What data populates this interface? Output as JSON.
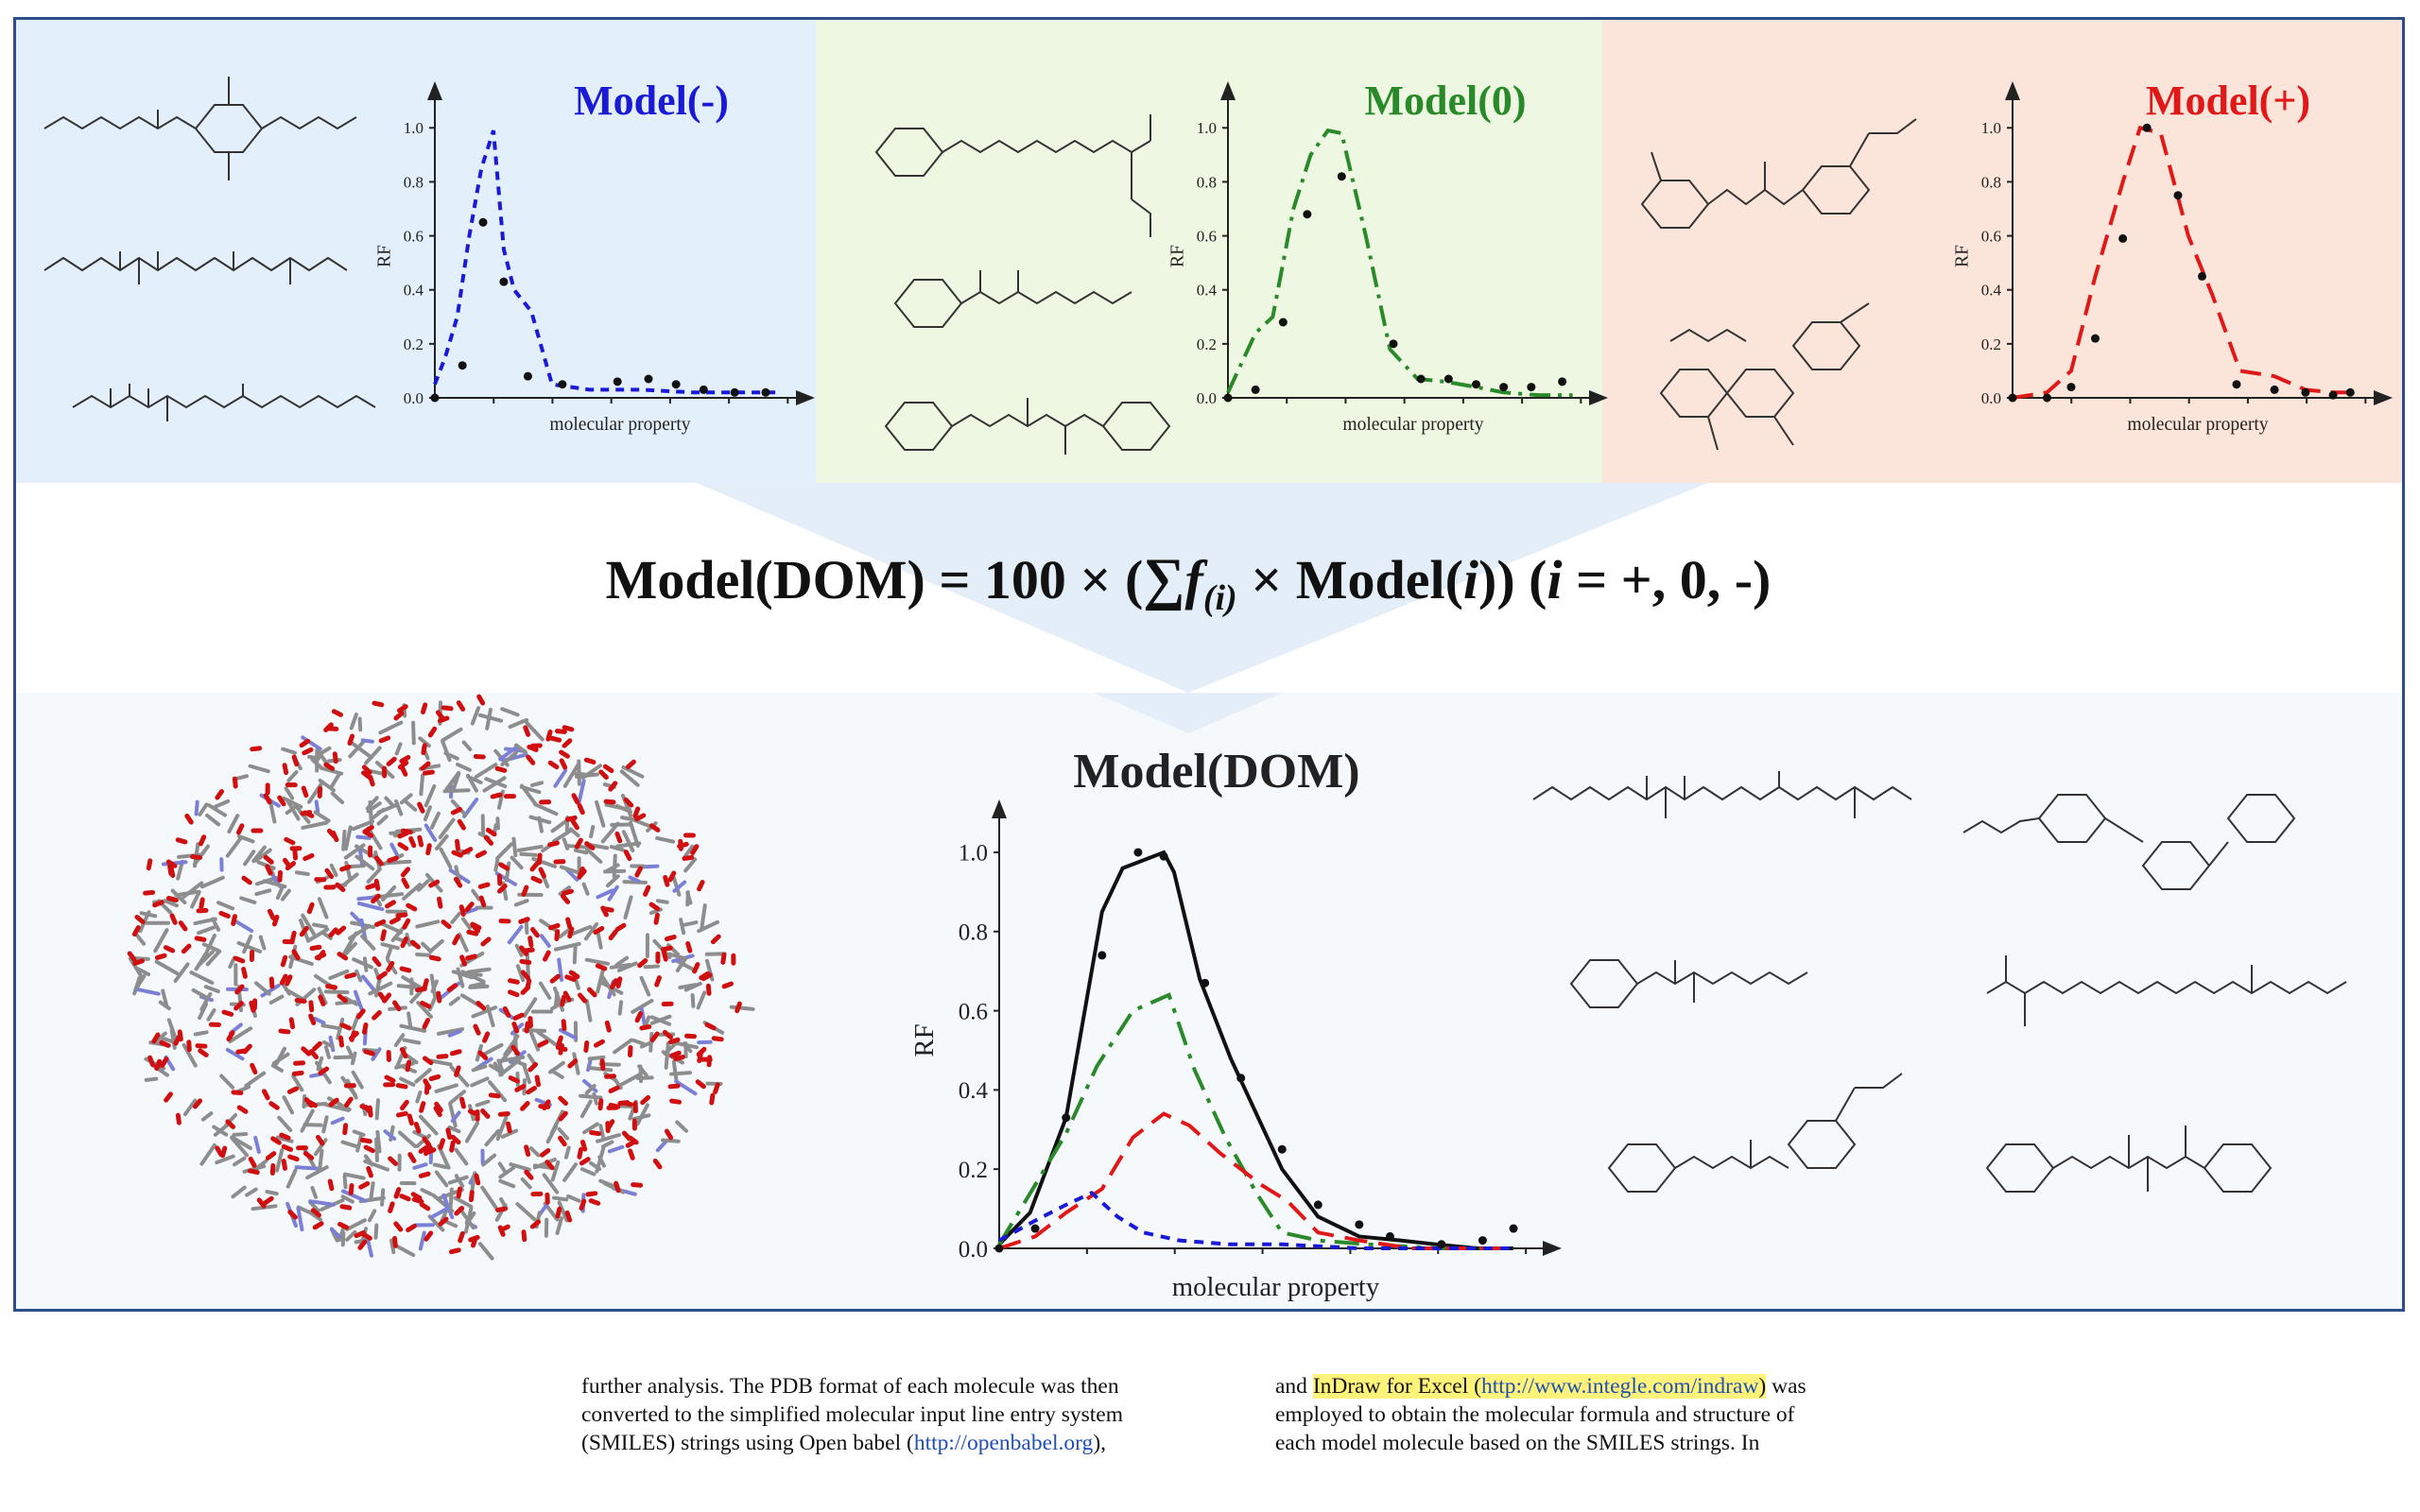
{
  "panels": [
    {
      "id": "neg",
      "title": "Model(-)",
      "color": "#1a1ad6",
      "bg": "#e3f0fb",
      "dash": "9,7",
      "ylabel": "RF",
      "xlabel": "molecular property",
      "ticks": [
        "0.0",
        "0.2",
        "0.4",
        "0.6",
        "0.8",
        "1.0"
      ]
    },
    {
      "id": "zero",
      "title": "Model(0)",
      "color": "#2a8a2a",
      "bg": "#eef7e1",
      "dash": "22,8,4,8",
      "ylabel": "RF",
      "xlabel": "molecular property",
      "ticks": [
        "0.0",
        "0.2",
        "0.4",
        "0.6",
        "0.8",
        "1.0"
      ]
    },
    {
      "id": "pos",
      "title": "Model(+)",
      "color": "#e01818",
      "bg": "#fbe4d9",
      "dash": "22,11",
      "ylabel": "RF",
      "xlabel": "molecular property",
      "ticks": [
        "0.0",
        "0.2",
        "0.4",
        "0.6",
        "0.8",
        "1.0"
      ]
    }
  ],
  "formula": {
    "lhs": "Model(DOM) = 100 × (",
    "sum": "∑",
    "f": "f",
    "sub": "(i)",
    "mid": " × Model(",
    "i": "i",
    "close": ")) (",
    "i2": "i",
    "tail": " = +, 0, -)"
  },
  "dom_chart": {
    "title": "Model(DOM)",
    "ylabel": "RF",
    "xlabel": "molecular property",
    "ticks": [
      "0.0",
      "0.2",
      "0.4",
      "0.6",
      "0.8",
      "1.0"
    ]
  },
  "chart_data": [
    {
      "type": "line",
      "title": "Model(-)",
      "xlabel": "molecular property",
      "ylabel": "RF",
      "ylim": [
        0,
        1.05
      ],
      "series": [
        {
          "values_x": [
            0,
            0.03,
            0.065,
            0.1,
            0.135,
            0.17,
            0.2,
            0.23,
            0.28,
            0.34,
            0.45,
            0.6,
            0.75,
            0.85,
            0.93,
            1.0
          ],
          "values_y": [
            0.05,
            0.15,
            0.3,
            0.6,
            0.85,
            0.99,
            0.55,
            0.4,
            0.32,
            0.05,
            0.03,
            0.03,
            0.02,
            0.02,
            0.02,
            0.02
          ]
        },
        {
          "points_x": [
            0,
            0.08,
            0.14,
            0.2,
            0.27,
            0.37,
            0.53,
            0.62,
            0.7,
            0.78,
            0.87,
            0.96
          ],
          "points_y": [
            0.0,
            0.12,
            0.65,
            0.43,
            0.08,
            0.05,
            0.06,
            0.07,
            0.05,
            0.03,
            0.02,
            0.02
          ]
        }
      ]
    },
    {
      "type": "line",
      "title": "Model(0)",
      "xlabel": "molecular property",
      "ylabel": "RF",
      "ylim": [
        0,
        1.05
      ],
      "series": [
        {
          "values_x": [
            0,
            0.08,
            0.13,
            0.19,
            0.24,
            0.29,
            0.33,
            0.4,
            0.47,
            0.55,
            0.63,
            0.72,
            0.8,
            0.9,
            1.0
          ],
          "values_y": [
            0.02,
            0.24,
            0.3,
            0.7,
            0.9,
            0.99,
            0.98,
            0.6,
            0.18,
            0.07,
            0.06,
            0.04,
            0.02,
            0.01,
            0.01
          ],
          "style": "dash-dot"
        },
        {
          "points_x": [
            0,
            0.08,
            0.16,
            0.23,
            0.33,
            0.48,
            0.56,
            0.64,
            0.72,
            0.8,
            0.88,
            0.97
          ],
          "points_y": [
            0.0,
            0.03,
            0.28,
            0.68,
            0.82,
            0.2,
            0.07,
            0.07,
            0.05,
            0.04,
            0.04,
            0.06
          ]
        }
      ]
    },
    {
      "type": "line",
      "title": "Model(+)",
      "xlabel": "molecular property",
      "ylabel": "RF",
      "ylim": [
        0,
        1.05
      ],
      "series": [
        {
          "values_x": [
            0,
            0.1,
            0.17,
            0.24,
            0.32,
            0.37,
            0.43,
            0.51,
            0.58,
            0.66,
            0.76,
            0.85,
            0.93,
            1.0
          ],
          "values_y": [
            0.0,
            0.02,
            0.1,
            0.45,
            0.8,
            1.0,
            0.98,
            0.6,
            0.38,
            0.1,
            0.08,
            0.03,
            0.02,
            0.02
          ],
          "style": "dashed"
        },
        {
          "points_x": [
            0,
            0.1,
            0.17,
            0.24,
            0.32,
            0.39,
            0.48,
            0.55,
            0.65,
            0.76,
            0.85,
            0.93,
            0.98
          ],
          "points_y": [
            0.0,
            0.0,
            0.04,
            0.22,
            0.59,
            1.0,
            0.75,
            0.45,
            0.05,
            0.03,
            0.02,
            0.01,
            0.02
          ]
        }
      ]
    },
    {
      "type": "line",
      "title": "Model(DOM)",
      "xlabel": "molecular property",
      "ylabel": "RF",
      "ylim": [
        0,
        1.05
      ],
      "series": [
        {
          "name_color": "black",
          "style": "solid",
          "x": [
            0,
            0.06,
            0.13,
            0.2,
            0.24,
            0.32,
            0.34,
            0.39,
            0.45,
            0.55,
            0.62,
            0.7,
            0.78,
            0.85,
            0.93,
            1.0
          ],
          "y": [
            0.01,
            0.09,
            0.33,
            0.85,
            0.96,
            1.0,
            0.95,
            0.68,
            0.48,
            0.2,
            0.08,
            0.03,
            0.02,
            0.01,
            0.0,
            0.0
          ]
        },
        {
          "name_color": "green",
          "style": "dash-dot",
          "x": [
            0,
            0.07,
            0.13,
            0.19,
            0.26,
            0.33,
            0.38,
            0.44,
            0.5,
            0.55,
            0.62,
            0.72,
            0.85,
            1.0
          ],
          "y": [
            0.01,
            0.16,
            0.29,
            0.46,
            0.6,
            0.64,
            0.45,
            0.28,
            0.14,
            0.04,
            0.02,
            0.01,
            0.0,
            0.0
          ]
        },
        {
          "name_color": "red",
          "style": "dashed",
          "x": [
            0,
            0.07,
            0.13,
            0.2,
            0.26,
            0.32,
            0.37,
            0.43,
            0.51,
            0.56,
            0.62,
            0.7,
            0.8,
            1.0
          ],
          "y": [
            0.0,
            0.03,
            0.09,
            0.15,
            0.28,
            0.34,
            0.31,
            0.24,
            0.16,
            0.12,
            0.04,
            0.02,
            0.0,
            0.0
          ]
        },
        {
          "name_color": "blue",
          "style": "dotted-dash",
          "x": [
            0,
            0.07,
            0.13,
            0.18,
            0.23,
            0.28,
            0.35,
            0.45,
            0.55,
            0.7,
            1.0
          ],
          "y": [
            0.02,
            0.07,
            0.11,
            0.14,
            0.08,
            0.04,
            0.02,
            0.01,
            0.01,
            0.0,
            0.0
          ]
        },
        {
          "type": "points",
          "x": [
            0,
            0.07,
            0.13,
            0.2,
            0.27,
            0.32,
            0.4,
            0.47,
            0.55,
            0.62,
            0.7,
            0.76,
            0.86,
            0.94,
            1.0
          ],
          "y": [
            0.0,
            0.05,
            0.33,
            0.74,
            1.0,
            0.99,
            0.67,
            0.43,
            0.25,
            0.11,
            0.06,
            0.03,
            0.01,
            0.02,
            0.05
          ]
        }
      ]
    }
  ],
  "caption": {
    "left_lines": [
      "further analysis. The PDB format of each molecule was then",
      "converted to the simplified molecular input line entry system",
      "(SMILES) strings using Open babel (",
      "),"
    ],
    "left_link": "http://openbabel.org",
    "right_prefix": "and ",
    "right_highlight": "InDraw for Excel (",
    "right_link": "http://www.integle.com/indraw",
    "right_highlight_close": ")",
    "right_suffix": " was",
    "right_lines": [
      "employed to obtain the molecular formula and structure of",
      "each model molecule based on the SMILES strings. In"
    ]
  }
}
